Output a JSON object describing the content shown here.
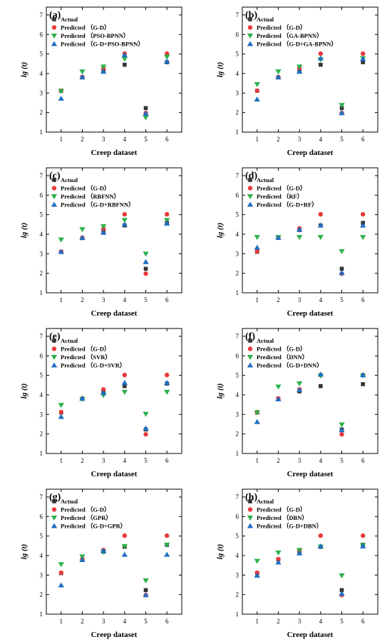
{
  "colors": {
    "actual": "#333333",
    "gd": "#e8393a",
    "ml": "#2cb14a",
    "hybrid": "#1f6fc4"
  },
  "chart_data": [
    {
      "type": "scatter",
      "panel": "(a)",
      "xlabel": "Creep dataset",
      "ylabel": "lg (t)",
      "xlim": [
        0.3,
        6.7
      ],
      "ylim": [
        1,
        7.4
      ],
      "x": [
        1,
        2,
        3,
        4,
        5,
        6
      ],
      "legend_position": "top-left",
      "series": [
        {
          "name": "Actual",
          "marker": "square",
          "values": [
            3.12,
            3.8,
            4.15,
            4.45,
            2.23,
            4.58
          ]
        },
        {
          "name": "Predicted （G-D）",
          "marker": "circle",
          "values": [
            3.12,
            3.82,
            4.28,
            5.02,
            1.98,
            5.02
          ]
        },
        {
          "name": "Predicted （PSO-BPNN）",
          "marker": "triangle-down",
          "values": [
            3.1,
            4.1,
            4.35,
            4.75,
            1.75,
            4.85
          ]
        },
        {
          "name": "Predicted （G-D+PSO-BPNN）",
          "marker": "triangle-up",
          "values": [
            2.72,
            3.82,
            4.1,
            4.95,
            1.95,
            4.62
          ]
        }
      ]
    },
    {
      "type": "scatter",
      "panel": "(b)",
      "xlabel": "Creep dataset",
      "ylabel": "lg (t)",
      "xlim": [
        0.3,
        6.7
      ],
      "ylim": [
        1,
        7.4
      ],
      "x": [
        1,
        2,
        3,
        4,
        5,
        6
      ],
      "legend_position": "top-left",
      "series": [
        {
          "name": "Actual",
          "marker": "square",
          "values": [
            3.12,
            3.8,
            4.15,
            4.45,
            2.23,
            4.58
          ]
        },
        {
          "name": "Predicted （G-D）",
          "marker": "circle",
          "values": [
            3.12,
            3.82,
            4.28,
            5.02,
            1.98,
            5.02
          ]
        },
        {
          "name": "Predicted （GA-BPNN）",
          "marker": "triangle-down",
          "values": [
            3.45,
            4.1,
            4.35,
            4.72,
            2.38,
            4.78
          ]
        },
        {
          "name": "Predicted （G-D+GA-BPNN）",
          "marker": "triangle-up",
          "values": [
            2.68,
            3.82,
            4.1,
            4.78,
            1.98,
            4.75
          ]
        }
      ]
    },
    {
      "type": "scatter",
      "panel": "(c)",
      "xlabel": "Creep dataset",
      "ylabel": "lg (t)",
      "xlim": [
        0.3,
        6.7
      ],
      "ylim": [
        1,
        7.4
      ],
      "x": [
        1,
        2,
        3,
        4,
        5,
        6
      ],
      "legend_position": "top-left",
      "series": [
        {
          "name": "Actual",
          "marker": "square",
          "values": [
            3.1,
            3.8,
            4.15,
            4.45,
            2.23,
            4.58
          ]
        },
        {
          "name": "Predicted （G-D）",
          "marker": "circle",
          "values": [
            3.1,
            3.82,
            4.28,
            5.02,
            1.98,
            5.02
          ]
        },
        {
          "name": "Predicted （RBFNN）",
          "marker": "triangle-down",
          "values": [
            3.72,
            4.25,
            4.4,
            4.72,
            3.0,
            4.72
          ]
        },
        {
          "name": "Predicted （G-D+RBFNN）",
          "marker": "triangle-up",
          "values": [
            3.1,
            3.82,
            4.08,
            4.5,
            2.58,
            4.55
          ]
        }
      ]
    },
    {
      "type": "scatter",
      "panel": "(d)",
      "xlabel": "Creep dataset",
      "ylabel": "lg (t)",
      "xlim": [
        0.3,
        6.7
      ],
      "ylim": [
        1,
        7.4
      ],
      "x": [
        1,
        2,
        3,
        4,
        5,
        6
      ],
      "legend_position": "top-left",
      "series": [
        {
          "name": "Actual",
          "marker": "square",
          "values": [
            3.1,
            3.82,
            4.22,
            4.45,
            2.23,
            4.58
          ]
        },
        {
          "name": "Predicted （G-D）",
          "marker": "circle",
          "values": [
            3.12,
            3.82,
            4.3,
            5.02,
            1.98,
            5.02
          ]
        },
        {
          "name": "Predicted （RF）",
          "marker": "triangle-down",
          "values": [
            3.85,
            3.85,
            3.85,
            3.85,
            3.12,
            3.85
          ]
        },
        {
          "name": "Predicted （G-D+RF）",
          "marker": "triangle-up",
          "values": [
            3.32,
            3.82,
            4.25,
            4.45,
            2.02,
            4.45
          ]
        }
      ]
    },
    {
      "type": "scatter",
      "panel": "(e)",
      "xlabel": "Creep dataset",
      "ylabel": "lg (t)",
      "xlim": [
        0.3,
        6.7
      ],
      "ylim": [
        1,
        7.4
      ],
      "x": [
        1,
        2,
        3,
        4,
        5,
        6
      ],
      "legend_position": "top-left",
      "series": [
        {
          "name": "Actual",
          "marker": "square",
          "values": [
            3.1,
            3.8,
            4.15,
            4.45,
            2.23,
            4.58
          ]
        },
        {
          "name": "Predicted （G-D）",
          "marker": "circle",
          "values": [
            3.12,
            3.82,
            4.28,
            5.02,
            1.98,
            5.02
          ]
        },
        {
          "name": "Predicted （SVR）",
          "marker": "triangle-down",
          "values": [
            3.48,
            3.78,
            3.98,
            4.15,
            3.02,
            4.15
          ]
        },
        {
          "name": "Predicted （G-D+SVR）",
          "marker": "triangle-up",
          "values": [
            2.88,
            3.82,
            4.1,
            4.62,
            2.28,
            4.62
          ]
        }
      ]
    },
    {
      "type": "scatter",
      "panel": "(f)",
      "xlabel": "Creep dataset",
      "ylabel": "lg (t)",
      "xlim": [
        0.3,
        6.7
      ],
      "ylim": [
        1,
        7.4
      ],
      "x": [
        1,
        2,
        3,
        4,
        5,
        6
      ],
      "legend_position": "top-left",
      "series": [
        {
          "name": "Actual",
          "marker": "square",
          "values": [
            3.1,
            3.8,
            4.18,
            4.45,
            2.23,
            4.55
          ]
        },
        {
          "name": "Predicted （G-D）",
          "marker": "circle",
          "values": [
            3.12,
            3.82,
            4.28,
            5.02,
            1.98,
            5.02
          ]
        },
        {
          "name": "Predicted （DNN）",
          "marker": "triangle-down",
          "values": [
            3.1,
            4.42,
            4.58,
            4.98,
            2.48,
            4.98
          ]
        },
        {
          "name": "Predicted （G-D+DNN）",
          "marker": "triangle-up",
          "values": [
            2.62,
            3.78,
            4.25,
            5.05,
            2.2,
            5.02
          ]
        }
      ]
    },
    {
      "type": "scatter",
      "panel": "(g)",
      "xlabel": "Creep dataset",
      "ylabel": "lg (t)",
      "xlim": [
        0.3,
        6.7
      ],
      "ylim": [
        1,
        7.4
      ],
      "x": [
        1,
        2,
        3,
        4,
        5,
        6
      ],
      "legend_position": "top-left",
      "series": [
        {
          "name": "Actual",
          "marker": "square",
          "values": [
            3.1,
            3.8,
            4.2,
            4.45,
            2.23,
            4.55
          ]
        },
        {
          "name": "Predicted （G-D）",
          "marker": "circle",
          "values": [
            3.12,
            3.82,
            4.28,
            5.02,
            1.98,
            5.02
          ]
        },
        {
          "name": "Predicted （GPR）",
          "marker": "triangle-down",
          "values": [
            3.55,
            3.95,
            4.18,
            4.48,
            2.72,
            4.55
          ]
        },
        {
          "name": "Predicted （G-D+GPR）",
          "marker": "triangle-up",
          "values": [
            2.48,
            3.78,
            4.25,
            4.05,
            1.98,
            4.05
          ]
        }
      ]
    },
    {
      "type": "scatter",
      "panel": "(h)",
      "xlabel": "Creep dataset",
      "ylabel": "lg (t)",
      "xlim": [
        0.3,
        6.7
      ],
      "ylim": [
        1,
        7.4
      ],
      "x": [
        1,
        2,
        3,
        4,
        5,
        6
      ],
      "legend_position": "top-left",
      "series": [
        {
          "name": "Actual",
          "marker": "square",
          "values": [
            3.1,
            3.8,
            4.15,
            4.45,
            2.23,
            4.55
          ]
        },
        {
          "name": "Predicted （G-D）",
          "marker": "circle",
          "values": [
            3.12,
            3.82,
            4.28,
            5.02,
            1.98,
            5.02
          ]
        },
        {
          "name": "Predicted （DBN）",
          "marker": "triangle-down",
          "values": [
            3.72,
            4.15,
            4.28,
            4.45,
            2.98,
            4.52
          ]
        },
        {
          "name": "Predicted （G-D+DBN）",
          "marker": "triangle-up",
          "values": [
            2.98,
            3.65,
            4.12,
            4.48,
            2.05,
            4.48
          ]
        }
      ]
    }
  ]
}
